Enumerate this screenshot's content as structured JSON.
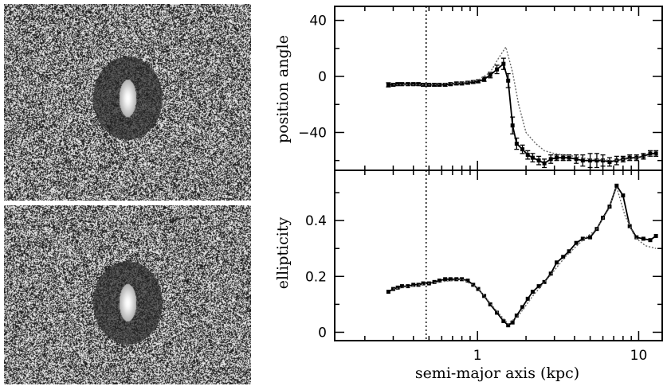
{
  "images": [
    {
      "caption": ""
    },
    {
      "caption": ""
    }
  ],
  "chart_data": [
    {
      "type": "line",
      "title": "",
      "xlabel": "",
      "ylabel": "position angle",
      "xscale": "log",
      "xlim": [
        0.13,
        14
      ],
      "ylim": [
        -67,
        50
      ],
      "xticks": [
        "1",
        "10"
      ],
      "yticks": [
        "40",
        "0",
        "−40"
      ],
      "yticks_values": [
        40,
        0,
        -40
      ],
      "grid": false,
      "vline_x": 0.48,
      "series": [
        {
          "name": "",
          "style": "solid-with-errorbars",
          "x": [
            0.28,
            0.3,
            0.32,
            0.34,
            0.37,
            0.4,
            0.43,
            0.46,
            0.5,
            0.54,
            0.58,
            0.63,
            0.68,
            0.74,
            0.8,
            0.87,
            0.94,
            1.01,
            1.1,
            1.2,
            1.32,
            1.45,
            1.55,
            1.65,
            1.75,
            1.9,
            2.05,
            2.2,
            2.4,
            2.6,
            2.85,
            3.1,
            3.4,
            3.7,
            4.1,
            4.5,
            5.0,
            5.5,
            6.0,
            6.6,
            7.3,
            8.0,
            8.8,
            9.7,
            10.7,
            11.8,
            12.8
          ],
          "y": [
            -6,
            -6,
            -5.5,
            -5.5,
            -5.5,
            -5.5,
            -5.5,
            -6,
            -6,
            -6,
            -6,
            -6,
            -5.5,
            -5,
            -5,
            -4.5,
            -4,
            -3.5,
            -2,
            1,
            5,
            9,
            -3,
            -35,
            -48,
            -52,
            -56,
            -58,
            -60,
            -62,
            -59,
            -58,
            -58,
            -58,
            -59,
            -60,
            -60,
            -60,
            -60,
            -61,
            -60,
            -59,
            -58,
            -58,
            -57,
            -55,
            -55
          ],
          "yerr": [
            1.5,
            1,
            1,
            1,
            1,
            1,
            1,
            1,
            1,
            1,
            1,
            1,
            1,
            1,
            1,
            1,
            1,
            1,
            1.5,
            2,
            3,
            4,
            5,
            6,
            4,
            3,
            3,
            3,
            3,
            3,
            3,
            2,
            2,
            2,
            3,
            4,
            5,
            5,
            4,
            3,
            3,
            2,
            2,
            2,
            2,
            2,
            2
          ]
        },
        {
          "name": "",
          "style": "dotted",
          "x": [
            0.3,
            0.5,
            0.8,
            1.0,
            1.2,
            1.35,
            1.5,
            1.65,
            1.8,
            2.0,
            2.3,
            2.6,
            3.0,
            4.0,
            5.0,
            7.0,
            10.0,
            12.8
          ],
          "y": [
            -6,
            -6,
            -4.5,
            -3,
            3,
            13,
            21,
            3,
            -20,
            -40,
            -48,
            -53,
            -55,
            -57,
            -59,
            -60,
            -58,
            -56
          ]
        }
      ]
    },
    {
      "type": "line",
      "title": "",
      "xlabel": "semi-major axis (kpc)",
      "ylabel": "ellipticity",
      "xscale": "log",
      "xlim": [
        0.13,
        14
      ],
      "ylim": [
        -0.03,
        0.58
      ],
      "xticks": [
        "1",
        "10"
      ],
      "xticks_values": [
        1,
        10
      ],
      "yticks": [
        "0",
        "0.2",
        "0.4"
      ],
      "yticks_values": [
        0,
        0.2,
        0.4
      ],
      "grid": false,
      "vline_x": 0.48,
      "series": [
        {
          "name": "",
          "style": "solid-with-errorbars",
          "x": [
            0.28,
            0.3,
            0.32,
            0.34,
            0.37,
            0.4,
            0.43,
            0.46,
            0.5,
            0.54,
            0.58,
            0.63,
            0.68,
            0.74,
            0.8,
            0.87,
            0.94,
            1.01,
            1.1,
            1.2,
            1.32,
            1.45,
            1.55,
            1.65,
            1.75,
            1.9,
            2.05,
            2.2,
            2.4,
            2.6,
            2.85,
            3.1,
            3.4,
            3.7,
            4.1,
            4.5,
            5.0,
            5.5,
            6.0,
            6.6,
            7.3,
            8.0,
            8.8,
            9.7,
            10.7,
            11.8,
            12.8
          ],
          "y": [
            0.145,
            0.155,
            0.16,
            0.165,
            0.165,
            0.17,
            0.17,
            0.175,
            0.175,
            0.18,
            0.185,
            0.19,
            0.19,
            0.19,
            0.19,
            0.185,
            0.17,
            0.155,
            0.13,
            0.1,
            0.07,
            0.04,
            0.025,
            0.035,
            0.06,
            0.09,
            0.12,
            0.145,
            0.165,
            0.18,
            0.21,
            0.25,
            0.27,
            0.29,
            0.32,
            0.335,
            0.34,
            0.37,
            0.41,
            0.45,
            0.525,
            0.49,
            0.38,
            0.34,
            0.335,
            0.33,
            0.345
          ]
        },
        {
          "name": "",
          "style": "dotted",
          "x": [
            0.3,
            0.5,
            0.8,
            1.0,
            1.3,
            1.55,
            1.8,
            2.2,
            2.8,
            3.5,
            4.5,
            5.5,
            6.5,
            7.3,
            8.2,
            9.5,
            11.0,
            12.8
          ],
          "y": [
            0.155,
            0.175,
            0.19,
            0.16,
            0.08,
            0.03,
            0.06,
            0.13,
            0.2,
            0.27,
            0.33,
            0.37,
            0.44,
            0.52,
            0.42,
            0.34,
            0.31,
            0.3
          ]
        }
      ]
    }
  ]
}
